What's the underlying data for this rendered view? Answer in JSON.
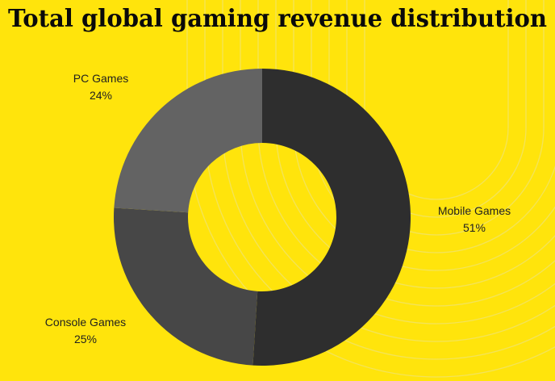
{
  "chart_data": {
    "type": "pie",
    "donut": true,
    "title": "Total global gaming revenue distribution",
    "categories": [
      "Mobile Games",
      "Console Games",
      "PC Games"
    ],
    "values": [
      51,
      25,
      24
    ],
    "labels": [
      "51%",
      "25%",
      "24%"
    ],
    "colors": [
      "#2e2e2e",
      "#474747",
      "#636363"
    ],
    "start_angle": "top",
    "direction": "clockwise",
    "legend": "none"
  },
  "colors": {
    "background": "#ffe40c",
    "decor_lines": "#f3e35a"
  }
}
